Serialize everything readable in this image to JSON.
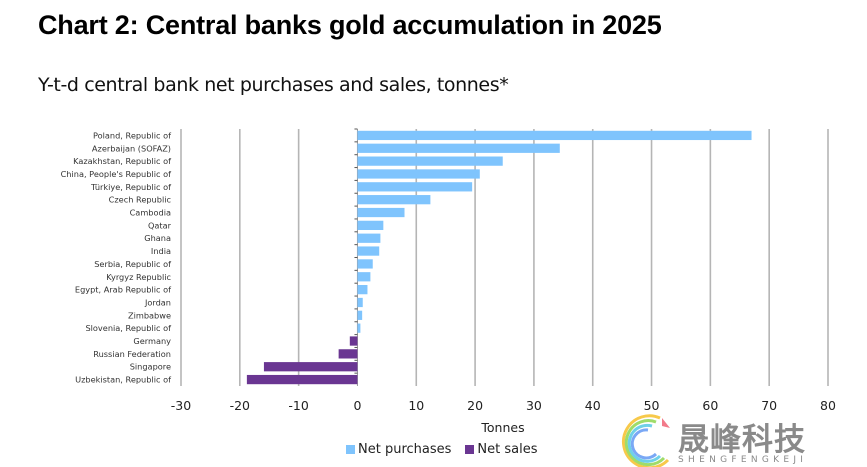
{
  "header": {
    "title": "Chart 2: Central banks gold accumulation in 2025",
    "subtitle": "Y-t-d central bank net purchases and sales, tonnes*"
  },
  "watermark": {
    "text": "晟峰科技",
    "subtext": "SHENGFENGKEJI"
  },
  "chart_data": {
    "type": "bar",
    "orientation": "horizontal",
    "title": "Chart 2: Central banks gold accumulation in 2025",
    "subtitle": "Y-t-d central bank net purchases and sales, tonnes*",
    "xlabel": "Tonnes",
    "ylabel": "",
    "xlim": [
      -30,
      80
    ],
    "xticks": [
      -30,
      -20,
      -10,
      0,
      10,
      20,
      30,
      40,
      50,
      60,
      70,
      80
    ],
    "grid": true,
    "legend_position": "bottom",
    "categories": [
      "Poland, Republic of",
      "Azerbaijan (SOFAZ)",
      "Kazakhstan, Republic of",
      "China, People's Republic of",
      "Türkiye, Republic of",
      "Czech Republic",
      "Cambodia",
      "Qatar",
      "Ghana",
      "India",
      "Serbia, Republic of",
      "Kyrgyz Republic",
      "Egypt, Arab Republic of",
      "Jordan",
      "Zimbabwe",
      "Slovenia, Republic of",
      "Germany",
      "Russian Federation",
      "Singapore",
      "Uzbekistan, Republic of"
    ],
    "values": [
      67.0,
      34.4,
      24.7,
      20.8,
      19.5,
      12.4,
      8.0,
      4.4,
      3.9,
      3.7,
      2.6,
      2.2,
      1.7,
      0.9,
      0.8,
      0.5,
      -1.3,
      -3.2,
      -15.9,
      -18.8
    ],
    "series": [
      {
        "name": "Net purchases",
        "color": "#7fc4fd"
      },
      {
        "name": "Net sales",
        "color": "#6a3692"
      }
    ]
  }
}
